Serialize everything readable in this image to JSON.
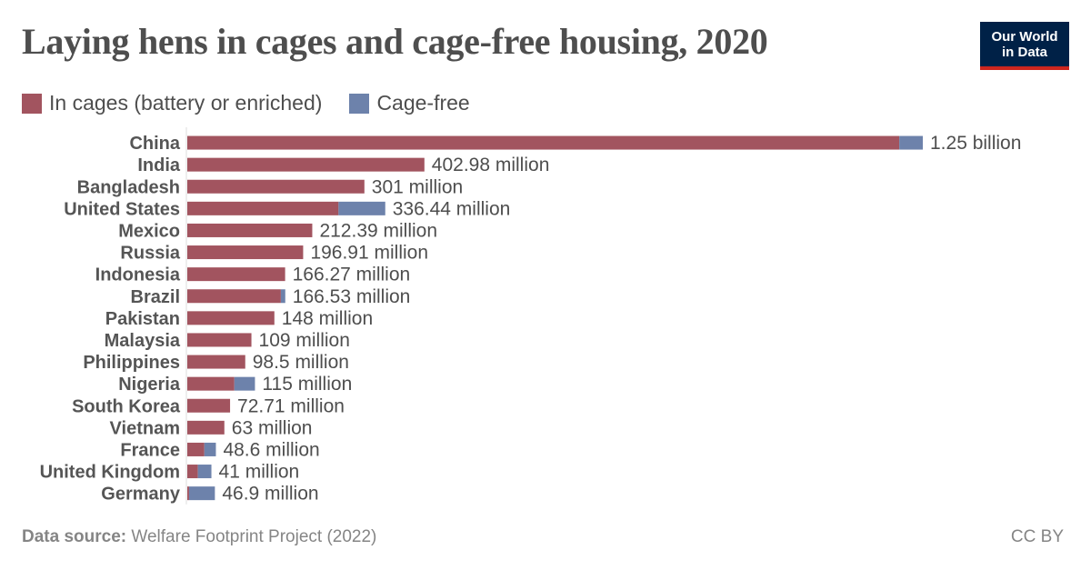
{
  "title": "Laying hens in cages and cage-free housing, 2020",
  "logo": {
    "line1": "Our World",
    "line2": "in Data"
  },
  "legend": [
    {
      "label": "In cages (battery or enriched)",
      "color": "#a2545f"
    },
    {
      "label": "Cage-free",
      "color": "#6d82ab"
    }
  ],
  "footer": {
    "source_label": "Data source:",
    "source_text": "Welfare Footprint Project (2022)",
    "license": "CC BY"
  },
  "chart_data": {
    "type": "bar",
    "orientation": "horizontal",
    "stacked": true,
    "categories": [
      "China",
      "India",
      "Bangladesh",
      "United States",
      "Mexico",
      "Russia",
      "Indonesia",
      "Brazil",
      "Pakistan",
      "Malaysia",
      "Philippines",
      "Nigeria",
      "South Korea",
      "Vietnam",
      "France",
      "United Kingdom",
      "Germany"
    ],
    "series": [
      {
        "name": "In cages (battery or enriched)",
        "color": "#a2545f",
        "values": [
          1210000000,
          402980000,
          301000000,
          257000000,
          212390000,
          196910000,
          166270000,
          159000000,
          148000000,
          109000000,
          98500000,
          80000000,
          72710000,
          63000000,
          29000000,
          18000000,
          3000000
        ]
      },
      {
        "name": "Cage-free",
        "color": "#6d82ab",
        "values": [
          40000000,
          0,
          0,
          79440000,
          0,
          0,
          0,
          7530000,
          0,
          0,
          0,
          35000000,
          0,
          0,
          19600000,
          23000000,
          43900000
        ]
      }
    ],
    "totals_labels": [
      "1.25 billion",
      "402.98 million",
      "301 million",
      "336.44 million",
      "212.39 million",
      "196.91 million",
      "166.27 million",
      "166.53 million",
      "148 million",
      "109 million",
      "98.5 million",
      "115 million",
      "72.71 million",
      "63 million",
      "48.6 million",
      "41 million",
      "46.9 million"
    ],
    "xlim": [
      0,
      1250000000
    ],
    "grid": false,
    "legend_position": "top-left"
  }
}
